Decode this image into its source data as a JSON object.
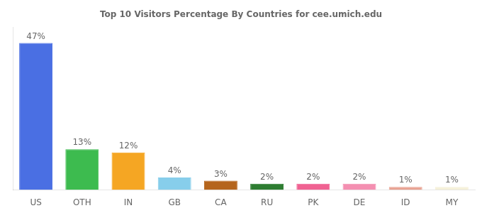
{
  "chart_data": {
    "type": "bar",
    "title": "Top 10 Visitors Percentage By Countries for cee.umich.edu",
    "categories": [
      "US",
      "OTH",
      "IN",
      "GB",
      "CA",
      "RU",
      "PK",
      "DE",
      "ID",
      "MY"
    ],
    "values": [
      47,
      13,
      12,
      4,
      3,
      2,
      2,
      2,
      1,
      1
    ],
    "value_labels": [
      "47%",
      "13%",
      "12%",
      "4%",
      "3%",
      "2%",
      "2%",
      "2%",
      "1%",
      "1%"
    ],
    "colors": [
      "#4a6fe3",
      "#3dbb4f",
      "#f5a623",
      "#87ceeb",
      "#b5651d",
      "#2e7d32",
      "#f06292",
      "#f48fb1",
      "#e8a090",
      "#f5f0d8"
    ],
    "ylim": [
      0,
      52
    ],
    "grid": false,
    "data_labels": true,
    "tick_labels": "x"
  }
}
